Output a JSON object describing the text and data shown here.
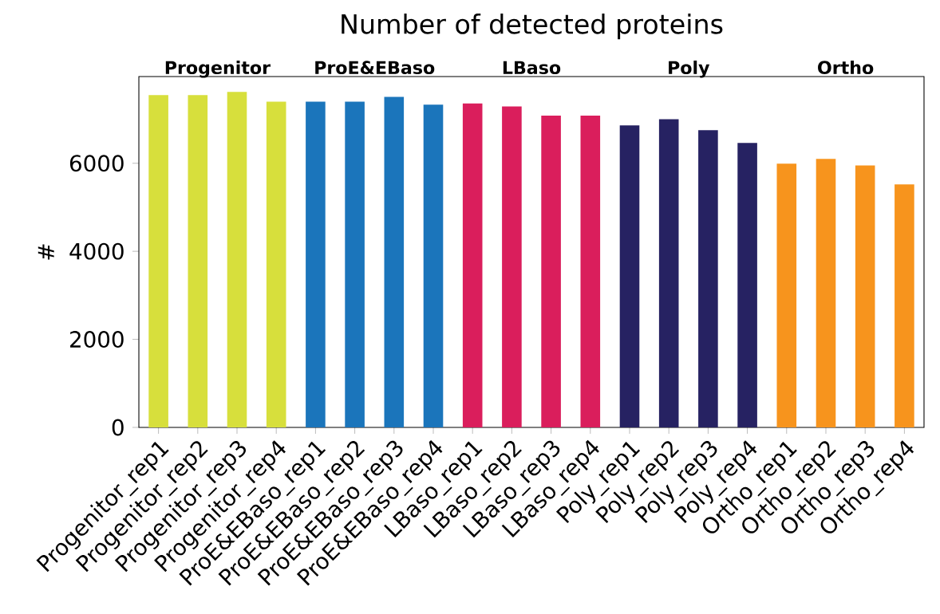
{
  "chart_data": {
    "type": "bar",
    "title": "Number of detected proteins",
    "ylabel": "#",
    "categories": [
      "Progenitor_rep1",
      "Progenitor_rep2",
      "Progenitor_rep3",
      "Progenitor_rep4",
      "ProE&EBaso_rep1",
      "ProE&EBaso_rep2",
      "ProE&EBaso_rep3",
      "ProE&EBaso_rep4",
      "LBaso_rep1",
      "LBaso_rep2",
      "LBaso_rep3",
      "LBaso_rep4",
      "Poly_rep1",
      "Poly_rep2",
      "Poly_rep3",
      "Poly_rep4",
      "Ortho_rep1",
      "Ortho_rep2",
      "Ortho_rep3",
      "Ortho_rep4"
    ],
    "values": [
      7550,
      7550,
      7620,
      7400,
      7400,
      7400,
      7510,
      7330,
      7360,
      7290,
      7080,
      7080,
      6860,
      7000,
      6750,
      6460,
      5990,
      6100,
      5950,
      5520
    ],
    "colors": [
      "#d7df3c",
      "#d7df3c",
      "#d7df3c",
      "#d7df3c",
      "#1b75bb",
      "#1b75bb",
      "#1b75bb",
      "#1b75bb",
      "#da1e5c",
      "#da1e5c",
      "#da1e5c",
      "#da1e5c",
      "#262262",
      "#262262",
      "#262262",
      "#262262",
      "#f7941d",
      "#f7941d",
      "#f7941d",
      "#f7941d"
    ],
    "annotations": [
      "Progenitor",
      "ProE&EBaso",
      "LBaso",
      "Poly",
      "Ortho"
    ],
    "ylim": [
      0,
      7970
    ],
    "yticks": [
      0,
      2000,
      4000,
      6000
    ]
  }
}
